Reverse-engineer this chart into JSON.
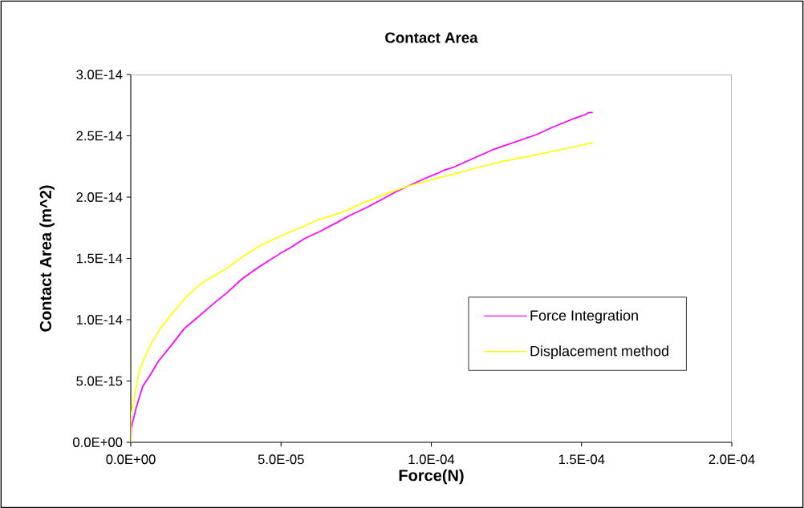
{
  "chart_data": {
    "type": "line",
    "title": "Contact Area",
    "xlabel": "Force(N)",
    "ylabel": "Contact Area (m^2)",
    "xlim": [
      0,
      0.0002
    ],
    "ylim": [
      0,
      3e-14
    ],
    "xticks": [
      {
        "value": 0,
        "label": "0.0E+00"
      },
      {
        "value": 5e-05,
        "label": "5.0E-05"
      },
      {
        "value": 0.0001,
        "label": "1.0E-04"
      },
      {
        "value": 0.00015,
        "label": "1.5E-04"
      },
      {
        "value": 0.0002,
        "label": "2.0E-04"
      }
    ],
    "yticks": [
      {
        "value": 0,
        "label": "0.0E+00"
      },
      {
        "value": 5e-15,
        "label": "5.0E-15"
      },
      {
        "value": 1e-14,
        "label": "1.0E-14"
      },
      {
        "value": 1.5e-14,
        "label": "1.5E-14"
      },
      {
        "value": 2e-14,
        "label": "2.0E-14"
      },
      {
        "value": 2.5e-14,
        "label": "2.5E-14"
      },
      {
        "value": 3e-14,
        "label": "3.0E-14"
      }
    ],
    "grid": false,
    "legend": "right",
    "marker": "none",
    "line_style": "solid",
    "series": [
      {
        "name": "Force Integration",
        "color": "#ff00ff",
        "x": [
          0,
          1.8e-07,
          1.8e-06,
          4e-06,
          5.8e-06,
          9.3e-06,
          1.33e-05,
          1.78e-05,
          2.13e-05,
          2.75e-05,
          3.2e-05,
          3.69e-05,
          4.26e-05,
          4.97e-05,
          5.33e-05,
          5.77e-05,
          6.3e-05,
          6.84e-05,
          7.28e-05,
          7.81e-05,
          8.35e-05,
          8.88e-05,
          9.32e-05,
          9.77e-05,
          0.0001017,
          0.0001044,
          0.0001075,
          0.0001208,
          0.000135,
          0.0001404,
          0.0001479,
          0.000151,
          0.0001524,
          0.0001537
        ],
        "values": [
          0,
          1.2e-15,
          2.83e-15,
          4.58e-15,
          5.23e-15,
          6.65e-15,
          7.85e-15,
          9.27e-15,
          1e-14,
          1.13e-14,
          1.22e-14,
          1.33e-14,
          1.43e-14,
          1.54e-14,
          1.59e-14,
          1.66e-14,
          1.72e-14,
          1.79e-14,
          1.85e-14,
          1.91e-14,
          1.98e-14,
          2.05e-14,
          2.1e-14,
          2.15e-14,
          2.19e-14,
          2.22e-14,
          2.245e-14,
          2.39e-14,
          2.51e-14,
          2.57e-14,
          2.645e-14,
          2.67e-14,
          2.69e-14,
          2.69e-14
        ]
      },
      {
        "name": "Displacement method",
        "color": "#ffff00",
        "x": [
          0,
          0,
          9e-07,
          1.6e-06,
          2.7e-06,
          4.3e-06,
          7.1e-06,
          9.8e-06,
          1.29e-05,
          1.82e-05,
          2.31e-05,
          3.2e-05,
          3.64e-05,
          4.26e-05,
          4.97e-05,
          5.68e-05,
          6.3e-05,
          7.02e-05,
          7.81e-05,
          8.53e-05,
          9.24e-05,
          0.0001012,
          0.0001079,
          0.0001146,
          0.0001235,
          0.000135,
          0.0001466,
          0.000151,
          0.0001537
        ],
        "values": [
          0,
          2.2e-15,
          3.16e-15,
          4.25e-15,
          5.67e-15,
          6.76e-15,
          8.18e-15,
          9.27e-15,
          1.025e-14,
          1.18e-14,
          1.29e-14,
          1.42e-14,
          1.5e-14,
          1.6e-14,
          1.68e-14,
          1.755e-14,
          1.82e-14,
          1.875e-14,
          1.96e-14,
          2.03e-14,
          2.09e-14,
          2.15e-14,
          2.19e-14,
          2.235e-14,
          2.29e-14,
          2.345e-14,
          2.405e-14,
          2.43e-14,
          2.44e-14
        ]
      }
    ]
  }
}
